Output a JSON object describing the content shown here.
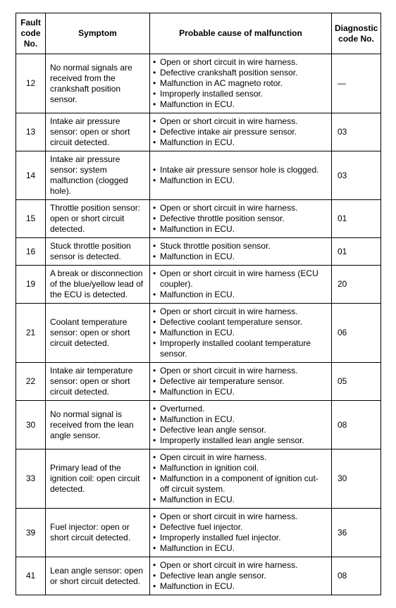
{
  "table": {
    "headers": {
      "fault_code": "Fault code No.",
      "symptom": "Symptom",
      "cause": "Probable cause of malfunction",
      "diag_code": "Diagnostic code No."
    },
    "rows": [
      {
        "fault_code": "12",
        "symptom": "No normal signals are received from the crankshaft position sensor.",
        "causes": [
          "Open or short circuit in wire harness.",
          "Defective crankshaft position sensor.",
          "Malfunction in AC magneto rotor.",
          "Improperly installed sensor.",
          "Malfunction in ECU."
        ],
        "diag_code": "—"
      },
      {
        "fault_code": "13",
        "symptom": "Intake air pressure sensor: open or short circuit detected.",
        "causes": [
          "Open or short circuit in wire harness.",
          "Defective intake air pressure sensor.",
          "Malfunction in ECU."
        ],
        "diag_code": "03"
      },
      {
        "fault_code": "14",
        "symptom": "Intake air pressure sensor: system malfunction (clogged hole).",
        "causes": [
          "Intake air pressure sensor hole is clogged.",
          "Malfunction in ECU."
        ],
        "diag_code": "03"
      },
      {
        "fault_code": "15",
        "symptom": "Throttle position sensor: open or short circuit detected.",
        "causes": [
          "Open or short circuit in wire harness.",
          "Defective throttle position sensor.",
          "Malfunction in ECU."
        ],
        "diag_code": "01"
      },
      {
        "fault_code": "16",
        "symptom": "Stuck throttle position sensor is detected.",
        "causes": [
          "Stuck throttle position sensor.",
          "Malfunction in ECU."
        ],
        "diag_code": "01"
      },
      {
        "fault_code": "19",
        "symptom": "A break or disconnection of the blue/yellow lead of the ECU is detected.",
        "causes": [
          "Open or short circuit in wire harness (ECU coupler).",
          "Malfunction in ECU."
        ],
        "diag_code": "20"
      },
      {
        "fault_code": "21",
        "symptom": "Coolant temperature sensor: open or short circuit detected.",
        "causes": [
          "Open or short circuit in wire harness.",
          "Defective coolant temperature sensor.",
          "Malfunction in ECU.",
          "Improperly installed coolant temperature sensor."
        ],
        "diag_code": "06"
      },
      {
        "fault_code": "22",
        "symptom": "Intake air temperature sensor: open or short circuit detected.",
        "causes": [
          "Open or short circuit in wire harness.",
          "Defective air temperature sensor.",
          "Malfunction in ECU."
        ],
        "diag_code": "05"
      },
      {
        "fault_code": "30",
        "symptom": "No normal signal is received from the lean angle sensor.",
        "causes": [
          "Overturned.",
          "Malfunction in ECU.",
          "Defective lean angle sensor.",
          "Improperly installed lean angle sensor."
        ],
        "diag_code": "08"
      },
      {
        "fault_code": "33",
        "symptom": "Primary lead of the ignition coil: open circuit detected.",
        "causes": [
          "Open circuit in wire harness.",
          "Malfunction in ignition coil.",
          "Malfunction in a component of ignition cut-off circuit system.",
          "Malfunction in ECU."
        ],
        "diag_code": "30"
      },
      {
        "fault_code": "39",
        "symptom": "Fuel injector: open or short circuit detected.",
        "causes": [
          "Open or short circuit in wire harness.",
          "Defective fuel injector.",
          "Improperly installed fuel injector.",
          "Malfunction in ECU."
        ],
        "diag_code": "36"
      },
      {
        "fault_code": "41",
        "symptom": "Lean angle sensor: open or short circuit detected.",
        "causes": [
          "Open or short circuit in wire harness.",
          "Defective lean angle sensor.",
          "Malfunction in ECU."
        ],
        "diag_code": "08"
      }
    ]
  }
}
